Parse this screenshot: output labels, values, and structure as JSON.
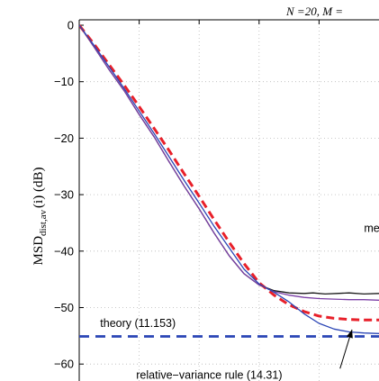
{
  "chart_data": {
    "type": "line",
    "title": "N =20, M =",
    "ylabel_main": "MSD",
    "ylabel_sub": "dist,av",
    "ylabel_arg": "(i) (dB)",
    "ylim": [
      -63,
      0
    ],
    "yticks": [
      0,
      -10,
      -20,
      -30,
      -40,
      -50,
      -60
    ],
    "ytick_labels": [
      "0",
      "−10",
      "−20",
      "−30",
      "−40",
      "−50",
      "−60"
    ],
    "xlim": [
      0,
      1
    ],
    "grid": true,
    "series": [
      {
        "color": "#1a1a1a",
        "style": "solid",
        "x": [
          0,
          0.05,
          0.1,
          0.15,
          0.2,
          0.25,
          0.3,
          0.35,
          0.4,
          0.45,
          0.5,
          0.55,
          0.6,
          0.65,
          0.7,
          0.75,
          0.78,
          0.82,
          0.86,
          0.9,
          0.95,
          1.0
        ],
        "y": [
          0,
          -3.9,
          -7.9,
          -11.6,
          -15.8,
          -19.8,
          -24.2,
          -28.5,
          -32.5,
          -36.8,
          -40.8,
          -44.0,
          -46.0,
          -47.0,
          -47.4,
          -47.5,
          -47.4,
          -47.6,
          -47.5,
          -47.4,
          -47.6,
          -47.5
        ]
      },
      {
        "color": "#7b3fa6",
        "style": "solid",
        "x": [
          0,
          0.05,
          0.1,
          0.15,
          0.2,
          0.25,
          0.3,
          0.35,
          0.4,
          0.45,
          0.5,
          0.55,
          0.6,
          0.65,
          0.7,
          0.75,
          0.8,
          0.85,
          0.9,
          0.95,
          1.0
        ],
        "y": [
          0,
          -3.9,
          -7.9,
          -11.6,
          -15.8,
          -19.8,
          -24.2,
          -28.5,
          -32.5,
          -36.8,
          -40.8,
          -44.0,
          -46.0,
          -47.2,
          -47.8,
          -48.2,
          -48.4,
          -48.5,
          -48.6,
          -48.6,
          -48.7
        ]
      },
      {
        "color": "#e8202a",
        "style": "dashed",
        "x": [
          0,
          0.05,
          0.1,
          0.15,
          0.2,
          0.25,
          0.3,
          0.35,
          0.4,
          0.45,
          0.5,
          0.55,
          0.6,
          0.65,
          0.7,
          0.75,
          0.8,
          0.85,
          0.9,
          0.95,
          1.0
        ],
        "y": [
          0,
          -3.4,
          -7.0,
          -10.6,
          -14.4,
          -18.3,
          -22.2,
          -26.3,
          -30.3,
          -34.4,
          -38.4,
          -42.2,
          -45.6,
          -47.8,
          -49.5,
          -50.7,
          -51.5,
          -51.9,
          -52.1,
          -52.2,
          -52.2
        ]
      },
      {
        "color": "#2a45b5",
        "style": "solid",
        "x": [
          0,
          0.05,
          0.1,
          0.15,
          0.2,
          0.25,
          0.3,
          0.35,
          0.4,
          0.45,
          0.5,
          0.55,
          0.6,
          0.65,
          0.7,
          0.75,
          0.8,
          0.85,
          0.9,
          0.95,
          1.0
        ],
        "y": [
          0,
          -3.6,
          -7.4,
          -11.2,
          -15.2,
          -19.2,
          -23.3,
          -27.5,
          -31.5,
          -35.6,
          -39.4,
          -43.2,
          -45.8,
          -47.3,
          -49.0,
          -51.1,
          -52.8,
          -53.8,
          -54.3,
          -54.5,
          -54.6
        ]
      },
      {
        "color": "#2a45b5",
        "style": "dashed-thick",
        "x": [
          0,
          1.0
        ],
        "y": [
          -55.1,
          -55.1
        ]
      }
    ],
    "annotations": [
      {
        "text": "theory (11.153)",
        "x": 0.07,
        "y": -53.4
      },
      {
        "text": "relative−variance rule (14.31)",
        "x": 0.19,
        "y": -62.6,
        "arrow_to_x": 0.91,
        "arrow_to_y": -53.9,
        "arrow_from_x": 0.87,
        "arrow_from_y": -60.8
      },
      {
        "text": "met",
        "x": 0.95,
        "y": -36.6
      }
    ]
  }
}
